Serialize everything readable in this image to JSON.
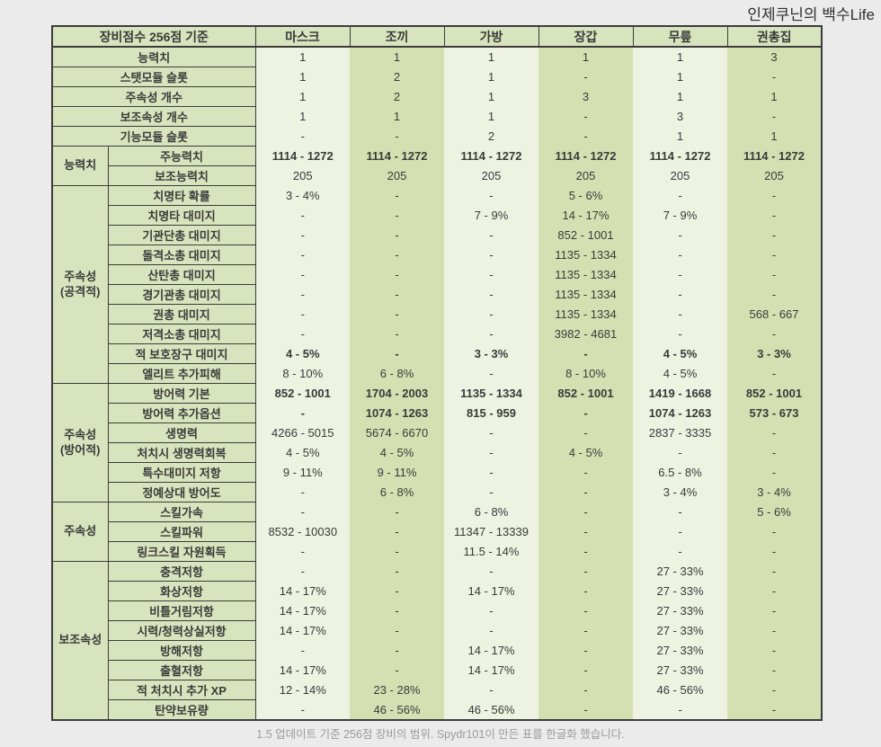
{
  "watermark": "인제쿠닌의 백수Life",
  "footer": "1.5 업데이트 기준 256점 장비의 범위. Spydr101이 만든 표를 한글화 했습니다.",
  "colors": {
    "page_bg": "#ebebeb",
    "table_border": "#3c3c3c",
    "label_bg": "#d8e4bd",
    "band_light": "#edf2e1",
    "band_dark": "#d4e0b2",
    "text": "#3a3a3a",
    "footer_text": "#9b9b9b"
  },
  "table": {
    "corner_header": "장비점수 256점 기준",
    "columns": [
      "마스크",
      "조끼",
      "가방",
      "장갑",
      "무릎",
      "권총집"
    ],
    "sections": [
      {
        "group_lines": null,
        "rows": [
          {
            "label": "능력치",
            "values": [
              "1",
              "1",
              "1",
              "1",
              "1",
              "3"
            ]
          },
          {
            "label": "스탯모듈 슬롯",
            "values": [
              "1",
              "2",
              "1",
              "-",
              "1",
              "-"
            ]
          },
          {
            "label": "주속성 개수",
            "values": [
              "1",
              "2",
              "1",
              "3",
              "1",
              "1"
            ]
          },
          {
            "label": "보조속성 개수",
            "values": [
              "1",
              "1",
              "1",
              "-",
              "3",
              "-"
            ]
          },
          {
            "label": "기능모듈 슬롯",
            "values": [
              "-",
              "-",
              "2",
              "-",
              "1",
              "1"
            ]
          }
        ]
      },
      {
        "group_lines": [
          "능력치"
        ],
        "rows": [
          {
            "label": "주능력치",
            "bold": true,
            "values": [
              "1114 - 1272",
              "1114 - 1272",
              "1114 - 1272",
              "1114 - 1272",
              "1114 - 1272",
              "1114 - 1272"
            ]
          },
          {
            "label": "보조능력치",
            "values": [
              "205",
              "205",
              "205",
              "205",
              "205",
              "205"
            ]
          }
        ]
      },
      {
        "group_lines": [
          "주속성",
          "(공격적)"
        ],
        "rows": [
          {
            "label": "치명타 확률",
            "values": [
              "3 - 4%",
              "-",
              "-",
              "5 - 6%",
              "-",
              "-"
            ]
          },
          {
            "label": "치명타 대미지",
            "values": [
              "-",
              "-",
              "7 - 9%",
              "14 - 17%",
              "7 - 9%",
              "-"
            ]
          },
          {
            "label": "기관단총 대미지",
            "values": [
              "-",
              "-",
              "-",
              "852 - 1001",
              "-",
              "-"
            ]
          },
          {
            "label": "돌격소총 대미지",
            "values": [
              "-",
              "-",
              "-",
              "1135 - 1334",
              "-",
              "-"
            ]
          },
          {
            "label": "산탄총 대미지",
            "values": [
              "-",
              "-",
              "-",
              "1135 - 1334",
              "-",
              "-"
            ]
          },
          {
            "label": "경기관총 대미지",
            "values": [
              "-",
              "-",
              "-",
              "1135 - 1334",
              "-",
              "-"
            ]
          },
          {
            "label": "권총 대미지",
            "values": [
              "-",
              "-",
              "-",
              "1135 - 1334",
              "-",
              "568 - 667"
            ]
          },
          {
            "label": "저격소총 대미지",
            "values": [
              "-",
              "-",
              "-",
              "3982 - 4681",
              "-",
              "-"
            ]
          },
          {
            "label": "적 보호장구 대미지",
            "bold": true,
            "values": [
              "4 - 5%",
              "-",
              "3 - 3%",
              "-",
              "4 - 5%",
              "3 - 3%"
            ]
          },
          {
            "label": "엘리트 추가피해",
            "values": [
              "8 - 10%",
              "6 - 8%",
              "-",
              "8 - 10%",
              "4 - 5%",
              "-"
            ]
          }
        ]
      },
      {
        "group_lines": [
          "주속성",
          "(방어적)"
        ],
        "rows": [
          {
            "label": "방어력 기본",
            "bold": true,
            "values": [
              "852 - 1001",
              "1704 - 2003",
              "1135 - 1334",
              "852 - 1001",
              "1419 - 1668",
              "852 - 1001"
            ]
          },
          {
            "label": "방어력 추가옵션",
            "bold": true,
            "values": [
              "-",
              "1074 - 1263",
              "815 - 959",
              "-",
              "1074 - 1263",
              "573 - 673"
            ]
          },
          {
            "label": "생명력",
            "values": [
              "4266 - 5015",
              "5674 - 6670",
              "-",
              "-",
              "2837 - 3335",
              "-"
            ]
          },
          {
            "label": "처치시 생명력회복",
            "values": [
              "4 - 5%",
              "4 - 5%",
              "-",
              "4 - 5%",
              "-",
              "-"
            ]
          },
          {
            "label": "특수대미지 저항",
            "values": [
              "9 - 11%",
              "9 - 11%",
              "-",
              "-",
              "6.5 - 8%",
              "-"
            ]
          },
          {
            "label": "정예상대 방어도",
            "values": [
              "-",
              "6 - 8%",
              "-",
              "-",
              "3 - 4%",
              "3 - 4%"
            ]
          }
        ]
      },
      {
        "group_lines": [
          "주속성"
        ],
        "rows": [
          {
            "label": "스킬가속",
            "values": [
              "-",
              "-",
              "6 - 8%",
              "-",
              "-",
              "5 - 6%"
            ]
          },
          {
            "label": "스킬파워",
            "values": [
              "8532 - 10030",
              "-",
              "11347 - 13339",
              "-",
              "-",
              "-"
            ]
          },
          {
            "label": "링크스킬 자원획득",
            "values": [
              "-",
              "-",
              "11.5 - 14%",
              "-",
              "-",
              "-"
            ]
          }
        ]
      },
      {
        "group_lines": [
          "보조속성"
        ],
        "rows": [
          {
            "label": "충격저항",
            "values": [
              "-",
              "-",
              "-",
              "-",
              "27 - 33%",
              "-"
            ]
          },
          {
            "label": "화상저항",
            "values": [
              "14 - 17%",
              "-",
              "14 - 17%",
              "-",
              "27 - 33%",
              "-"
            ]
          },
          {
            "label": "비틀거림저항",
            "values": [
              "14 - 17%",
              "-",
              "-",
              "-",
              "27 - 33%",
              "-"
            ]
          },
          {
            "label": "시력/청력상실저항",
            "values": [
              "14 - 17%",
              "-",
              "-",
              "-",
              "27 - 33%",
              "-"
            ]
          },
          {
            "label": "방해저항",
            "values": [
              "-",
              "-",
              "14 - 17%",
              "-",
              "27 - 33%",
              "-"
            ]
          },
          {
            "label": "출혈저항",
            "values": [
              "14 - 17%",
              "-",
              "14 - 17%",
              "-",
              "27 - 33%",
              "-"
            ]
          },
          {
            "label": "적 처치시 추가 XP",
            "values": [
              "12 - 14%",
              "23 - 28%",
              "-",
              "-",
              "46 - 56%",
              "-"
            ]
          },
          {
            "label": "탄약보유량",
            "values": [
              "-",
              "46 - 56%",
              "46 - 56%",
              "-",
              "-",
              "-"
            ]
          }
        ]
      }
    ]
  }
}
